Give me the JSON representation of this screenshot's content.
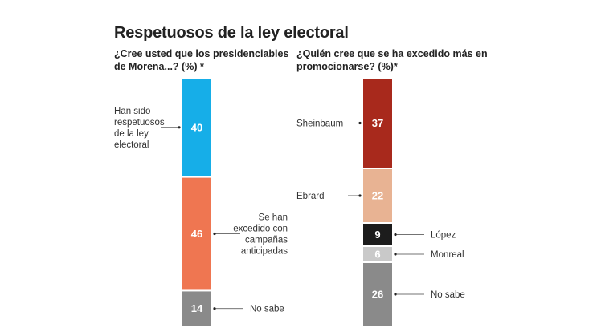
{
  "title": "Respetuosos de la ley electoral",
  "chart_data": [
    {
      "type": "bar",
      "stacked": true,
      "question": "¿Cree usted que los presidenciables de Morena...? (%) *",
      "segments": [
        {
          "label": "Han sido respetuosos de la ley electoral",
          "label_lines": [
            "Han sido",
            "respetuosos",
            "de la ley",
            "electoral"
          ],
          "value": 40,
          "value_text": "40",
          "color": "#16aee8",
          "label_side": "left"
        },
        {
          "label": "Se han excedido con campañas anticipadas",
          "label_lines": [
            "Se han",
            "excedido con",
            "campañas",
            "anticipadas"
          ],
          "value": 46,
          "value_text": "46",
          "color": "#ef7651",
          "label_side": "right"
        },
        {
          "label": "No sabe",
          "label_lines": [
            "No sabe"
          ],
          "value": 14,
          "value_text": "14",
          "color": "#8a8a8a",
          "label_side": "right"
        }
      ]
    },
    {
      "type": "bar",
      "stacked": true,
      "question": "¿Quién cree que se ha excedido más en promocionarse? (%)*",
      "segments": [
        {
          "label": "Sheinbaum",
          "label_lines": [
            "Sheinbaum"
          ],
          "value": 37,
          "value_text": "37",
          "color": "#a8291c",
          "label_side": "left"
        },
        {
          "label": "Ebrard",
          "label_lines": [
            "Ebrard"
          ],
          "value": 22,
          "value_text": "22",
          "color": "#e8b393",
          "label_side": "left"
        },
        {
          "label": "López",
          "label_lines": [
            "López"
          ],
          "value": 9,
          "value_text": "9",
          "color": "#1c1c1c",
          "label_side": "right"
        },
        {
          "label": "Monreal",
          "label_lines": [
            "Monreal"
          ],
          "value": 6,
          "value_text": "6",
          "color": "#c9c9c9",
          "label_side": "right"
        },
        {
          "label": "No sabe",
          "label_lines": [
            "No sabe"
          ],
          "value": 26,
          "value_text": "26",
          "color": "#8a8a8a",
          "label_side": "right"
        }
      ]
    }
  ]
}
